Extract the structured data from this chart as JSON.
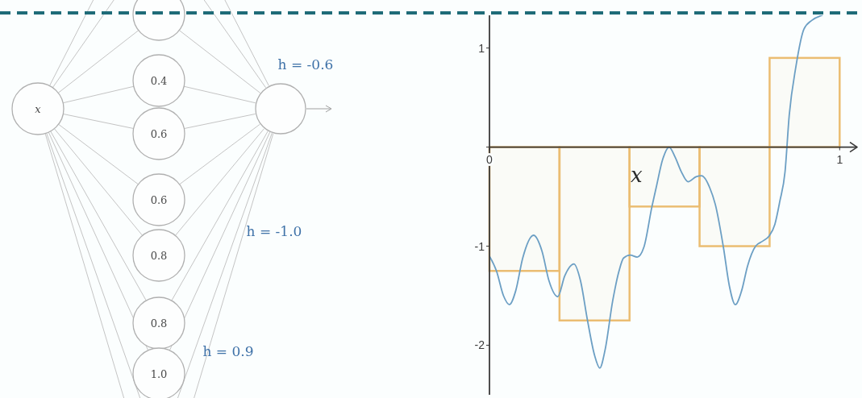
{
  "chart_data": [
    {
      "type": "other",
      "annotations": [
        "x",
        "0.4",
        "0.6",
        "0.6",
        "0.8",
        "0.8",
        "1.0",
        "h = -0.6",
        "h = -1.0",
        "h = 0.9"
      ]
    },
    {
      "type": "line",
      "xlabel": "x",
      "series": [
        {
          "type": "bar",
          "color": "#ebbd72",
          "x": [
            0.1,
            0.3,
            0.5,
            0.7,
            0.9
          ],
          "values": [
            -1.25,
            -1.75,
            -0.6,
            -1.0,
            0.9
          ]
        },
        {
          "type": "line",
          "color": "#6c9fc4",
          "x": [
            0,
            0.02,
            0.04,
            0.057,
            0.075,
            0.095,
            0.126,
            0.15,
            0.17,
            0.195,
            0.215,
            0.241,
            0.26,
            0.28,
            0.3,
            0.315,
            0.33,
            0.352,
            0.37,
            0.383,
            0.402,
            0.422,
            0.441,
            0.464,
            0.476,
            0.495,
            0.513,
            0.53,
            0.548,
            0.567,
            0.59,
            0.606,
            0.629,
            0.645,
            0.668,
            0.685,
            0.702,
            0.72,
            0.737,
            0.76,
            0.78,
            0.798,
            0.815,
            0.829,
            0.844,
            0.856,
            0.875,
            0.898,
            0.921,
            0.95
          ],
          "values": [
            -1.1,
            -1.25,
            -1.5,
            -1.59,
            -1.45,
            -1.12,
            -0.89,
            -1.05,
            -1.35,
            -1.51,
            -1.3,
            -1.18,
            -1.35,
            -1.75,
            -2.1,
            -2.23,
            -2.05,
            -1.55,
            -1.25,
            -1.12,
            -1.09,
            -1.11,
            -1.01,
            -0.6,
            -0.41,
            -0.12,
            0,
            -0.1,
            -0.25,
            -0.35,
            -0.3,
            -0.29,
            -0.41,
            -0.58,
            -1.01,
            -1.4,
            -1.59,
            -1.45,
            -1.2,
            -1,
            -0.95,
            -0.9,
            -0.78,
            -0.55,
            -0.25,
            0.32,
            0.81,
            1.19,
            1.28,
            1.33
          ]
        }
      ],
      "xlim": [
        0,
        1.05
      ],
      "xticks": [
        0,
        1
      ],
      "ylim": [
        -2.5,
        1.33
      ],
      "yticks": [
        -2,
        -1,
        {
          "value": 0,
          "label": null
        },
        1
      ]
    }
  ]
}
